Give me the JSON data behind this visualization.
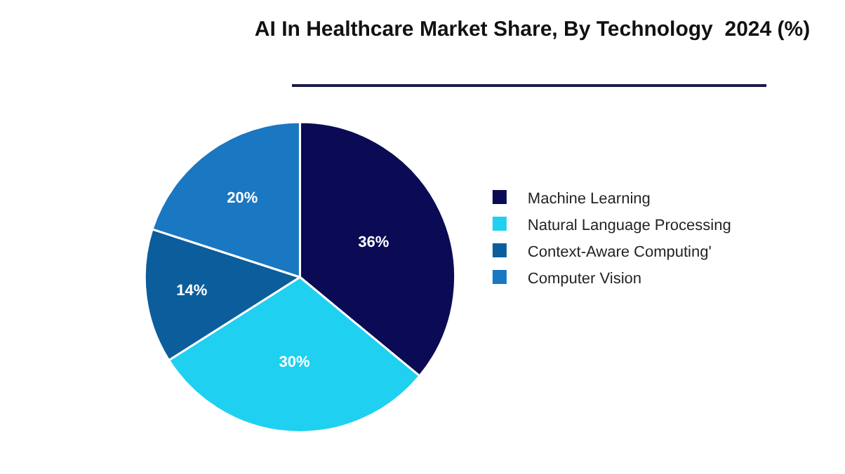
{
  "chart_data": {
    "type": "pie",
    "title": "AI In Healthcare Market Share, By Technology  2024 (%)",
    "categories": [
      "Machine Learning",
      "Natural Language Processing",
      "Context-Aware Computing'",
      "Computer Vision"
    ],
    "values": [
      36,
      30,
      14,
      20
    ],
    "value_labels": [
      "36%",
      "30%",
      "14%",
      "20%"
    ],
    "colors": [
      "#0b0b55",
      "#1fd0f0",
      "#0c5d9c",
      "#1a77c2"
    ],
    "legend": "right"
  }
}
